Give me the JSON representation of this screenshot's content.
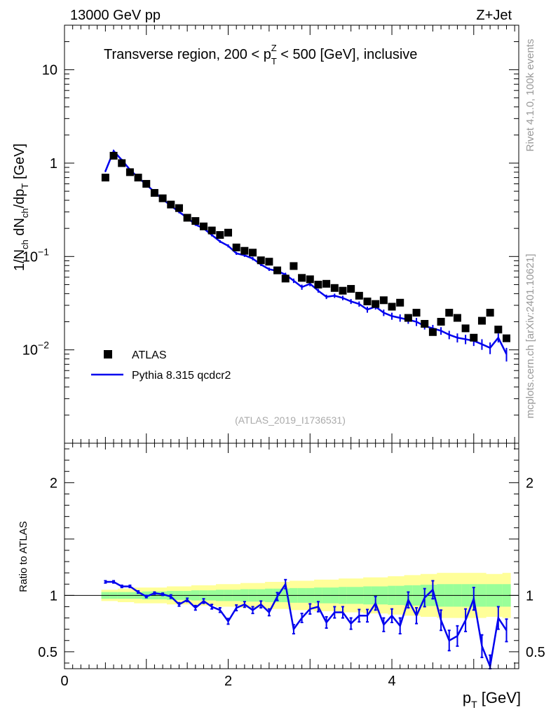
{
  "header": {
    "left": "13000 GeV pp",
    "right": "Z+Jet",
    "rivet": "Rivet 4.1.0,  100k events",
    "mcplots": "mcplots.cern.ch [arXiv:2401.10621]",
    "analysis": "(ATLAS_2019_I1736531)"
  },
  "chart_data": [
    {
      "type": "scatter",
      "panel": "main",
      "title_parts": {
        "a": "Transverse region, 200 < p",
        "sub": "T",
        "sup": "Z",
        "b": " < 500 [GeV], inclusive"
      },
      "xlim": [
        0,
        5.55
      ],
      "ylim": [
        0.001,
        30
      ],
      "yscale": "log",
      "ylabel_parts": {
        "p1": "1/N",
        "s1": "ch",
        "p2": " dN",
        "s2": "ch",
        "p3": "/dp",
        "s3": "T",
        "p4": " [GeV]"
      },
      "y_ticks": [
        {
          "v": 10,
          "base": "10",
          "exp": ""
        },
        {
          "v": 1,
          "base": "1",
          "exp": ""
        },
        {
          "v": 0.1,
          "base": "10",
          "exp": "−1"
        },
        {
          "v": 0.01,
          "base": "10",
          "exp": "−2"
        }
      ],
      "legend": {
        "position": "lower-left",
        "data_label": "ATLAS",
        "mc_label": "Pythia 8.315 qcdcr2"
      },
      "series": [
        {
          "name": "ATLAS",
          "style": "black-square",
          "x": [
            0.5,
            0.6,
            0.7,
            0.8,
            0.9,
            1.0,
            1.1,
            1.2,
            1.3,
            1.4,
            1.5,
            1.6,
            1.7,
            1.8,
            1.9,
            2.0,
            2.1,
            2.2,
            2.3,
            2.4,
            2.5,
            2.6,
            2.7,
            2.8,
            2.9,
            3.0,
            3.1,
            3.2,
            3.3,
            3.4,
            3.5,
            3.6,
            3.7,
            3.8,
            3.9,
            4.0,
            4.1,
            4.2,
            4.3,
            4.4,
            4.5,
            4.6,
            4.7,
            4.8,
            4.9,
            5.0,
            5.1,
            5.2,
            5.3,
            5.4
          ],
          "y": [
            0.7,
            1.2,
            1.0,
            0.8,
            0.7,
            0.6,
            0.48,
            0.42,
            0.36,
            0.33,
            0.26,
            0.24,
            0.21,
            0.19,
            0.17,
            0.18,
            0.125,
            0.115,
            0.11,
            0.091,
            0.088,
            0.071,
            0.058,
            0.079,
            0.059,
            0.057,
            0.05,
            0.051,
            0.046,
            0.043,
            0.045,
            0.038,
            0.033,
            0.031,
            0.034,
            0.029,
            0.032,
            0.022,
            0.025,
            0.019,
            0.0155,
            0.02,
            0.025,
            0.022,
            0.017,
            0.0135,
            0.0205,
            0.025,
            0.0165,
            0.0133
          ]
        },
        {
          "name": "Pythia 8.315 qcdcr2",
          "style": "blue-line",
          "x": [
            0.5,
            0.6,
            0.7,
            0.8,
            0.9,
            1.0,
            1.1,
            1.2,
            1.3,
            1.4,
            1.5,
            1.6,
            1.7,
            1.8,
            1.9,
            2.0,
            2.1,
            2.2,
            2.3,
            2.4,
            2.5,
            2.6,
            2.7,
            2.8,
            2.9,
            3.0,
            3.1,
            3.2,
            3.3,
            3.4,
            3.5,
            3.6,
            3.7,
            3.8,
            3.9,
            4.0,
            4.1,
            4.2,
            4.3,
            4.4,
            4.5,
            4.6,
            4.7,
            4.8,
            4.9,
            5.0,
            5.1,
            5.2,
            5.3,
            5.4
          ],
          "y": [
            0.82,
            1.35,
            1.08,
            0.85,
            0.7,
            0.59,
            0.49,
            0.41,
            0.35,
            0.3,
            0.26,
            0.22,
            0.2,
            0.17,
            0.145,
            0.13,
            0.108,
            0.103,
            0.095,
            0.082,
            0.073,
            0.07,
            0.064,
            0.055,
            0.047,
            0.051,
            0.043,
            0.037,
            0.038,
            0.036,
            0.033,
            0.031,
            0.027,
            0.029,
            0.025,
            0.023,
            0.022,
            0.021,
            0.02,
            0.018,
            0.017,
            0.016,
            0.0145,
            0.0135,
            0.013,
            0.0125,
            0.0115,
            0.0105,
            0.0135,
            0.009
          ],
          "err": [
            0.02,
            0.04,
            0.03,
            0.02,
            0.02,
            0.02,
            0.015,
            0.012,
            0.01,
            0.01,
            0.008,
            0.007,
            0.006,
            0.006,
            0.005,
            0.005,
            0.004,
            0.004,
            0.004,
            0.003,
            0.003,
            0.003,
            0.003,
            0.003,
            0.003,
            0.003,
            0.002,
            0.002,
            0.002,
            0.002,
            0.002,
            0.002,
            0.002,
            0.002,
            0.002,
            0.002,
            0.002,
            0.002,
            0.002,
            0.0015,
            0.0015,
            0.0015,
            0.0015,
            0.0015,
            0.0015,
            0.0015,
            0.0015,
            0.0015,
            0.0015,
            0.0015
          ]
        }
      ]
    },
    {
      "type": "line",
      "panel": "ratio",
      "xlim": [
        0,
        5.55
      ],
      "ylim": [
        0.35,
        2.35
      ],
      "ylabel": "Ratio to ATLAS",
      "xlabel_parts": {
        "p": "p",
        "sub": "T",
        "unit": " [GeV]"
      },
      "x_ticks": [
        {
          "v": 0,
          "label": "0"
        },
        {
          "v": 2,
          "label": "2"
        },
        {
          "v": 4,
          "label": "4"
        }
      ],
      "y_ticks": [
        {
          "v": 0.5,
          "label": "0.5"
        },
        {
          "v": 1,
          "label": "1"
        },
        {
          "v": 2,
          "label": "2"
        }
      ],
      "reference": 1.0,
      "bands": {
        "x": [
          0.45,
          0.55,
          0.65,
          0.75,
          0.85,
          0.95,
          1.05,
          1.15,
          1.25,
          1.35,
          1.45,
          1.55,
          1.65,
          1.75,
          1.85,
          1.95,
          2.05,
          2.15,
          2.25,
          2.35,
          2.45,
          2.55,
          2.65,
          2.75,
          2.85,
          2.95,
          3.05,
          3.15,
          3.25,
          3.35,
          3.45,
          3.55,
          3.65,
          3.75,
          3.85,
          3.95,
          4.05,
          4.15,
          4.25,
          4.35,
          4.45,
          4.55,
          4.65,
          4.75,
          4.85,
          4.95,
          5.05,
          5.15,
          5.25,
          5.35,
          5.45
        ],
        "yellow_half": [
          0.05,
          0.05,
          0.06,
          0.06,
          0.07,
          0.07,
          0.07,
          0.07,
          0.08,
          0.08,
          0.08,
          0.09,
          0.09,
          0.09,
          0.1,
          0.1,
          0.1,
          0.11,
          0.11,
          0.11,
          0.12,
          0.12,
          0.12,
          0.13,
          0.13,
          0.13,
          0.14,
          0.14,
          0.14,
          0.15,
          0.15,
          0.15,
          0.16,
          0.16,
          0.16,
          0.17,
          0.17,
          0.18,
          0.18,
          0.19,
          0.19,
          0.2,
          0.2,
          0.2,
          0.2,
          0.2,
          0.2,
          0.19,
          0.19,
          0.2
        ],
        "green_half": [
          0.03,
          0.03,
          0.03,
          0.03,
          0.03,
          0.035,
          0.035,
          0.035,
          0.04,
          0.04,
          0.04,
          0.045,
          0.045,
          0.045,
          0.05,
          0.05,
          0.05,
          0.055,
          0.055,
          0.055,
          0.06,
          0.06,
          0.06,
          0.065,
          0.065,
          0.065,
          0.07,
          0.07,
          0.07,
          0.075,
          0.075,
          0.075,
          0.08,
          0.08,
          0.08,
          0.085,
          0.085,
          0.09,
          0.09,
          0.095,
          0.095,
          0.1,
          0.1,
          0.1,
          0.1,
          0.1,
          0.1,
          0.1,
          0.1,
          0.1
        ]
      },
      "series": [
        {
          "name": "Pythia 8.315 qcdcr2 / ATLAS",
          "x": [
            0.5,
            0.6,
            0.7,
            0.8,
            0.9,
            1.0,
            1.1,
            1.2,
            1.3,
            1.4,
            1.5,
            1.6,
            1.7,
            1.8,
            1.9,
            2.0,
            2.1,
            2.2,
            2.3,
            2.4,
            2.5,
            2.6,
            2.7,
            2.8,
            2.9,
            3.0,
            3.1,
            3.2,
            3.3,
            3.4,
            3.5,
            3.6,
            3.7,
            3.8,
            3.9,
            4.0,
            4.1,
            4.2,
            4.3,
            4.4,
            4.5,
            4.6,
            4.7,
            4.8,
            4.9,
            5.0,
            5.1,
            5.2,
            5.3,
            5.4
          ],
          "y": [
            1.12,
            1.12,
            1.08,
            1.08,
            1.03,
            0.99,
            1.02,
            1.01,
            0.99,
            0.92,
            0.96,
            0.89,
            0.95,
            0.9,
            0.87,
            0.77,
            0.89,
            0.92,
            0.87,
            0.92,
            0.85,
            0.99,
            1.1,
            0.7,
            0.8,
            0.88,
            0.9,
            0.76,
            0.85,
            0.85,
            0.75,
            0.82,
            0.82,
            0.93,
            0.74,
            0.82,
            0.73,
            0.96,
            0.82,
            0.98,
            1.05,
            0.78,
            0.6,
            0.64,
            0.78,
            0.97,
            0.55,
            0.37,
            0.8,
            0.69
          ],
          "err": [
            0.01,
            0.01,
            0.01,
            0.01,
            0.01,
            0.01,
            0.01,
            0.01,
            0.015,
            0.015,
            0.015,
            0.02,
            0.02,
            0.02,
            0.02,
            0.025,
            0.025,
            0.025,
            0.03,
            0.03,
            0.03,
            0.035,
            0.04,
            0.04,
            0.04,
            0.045,
            0.045,
            0.05,
            0.05,
            0.05,
            0.05,
            0.055,
            0.055,
            0.06,
            0.06,
            0.06,
            0.07,
            0.07,
            0.07,
            0.08,
            0.08,
            0.09,
            0.09,
            0.09,
            0.1,
            0.1,
            0.1,
            0.1,
            0.1,
            0.1
          ]
        }
      ]
    }
  ]
}
